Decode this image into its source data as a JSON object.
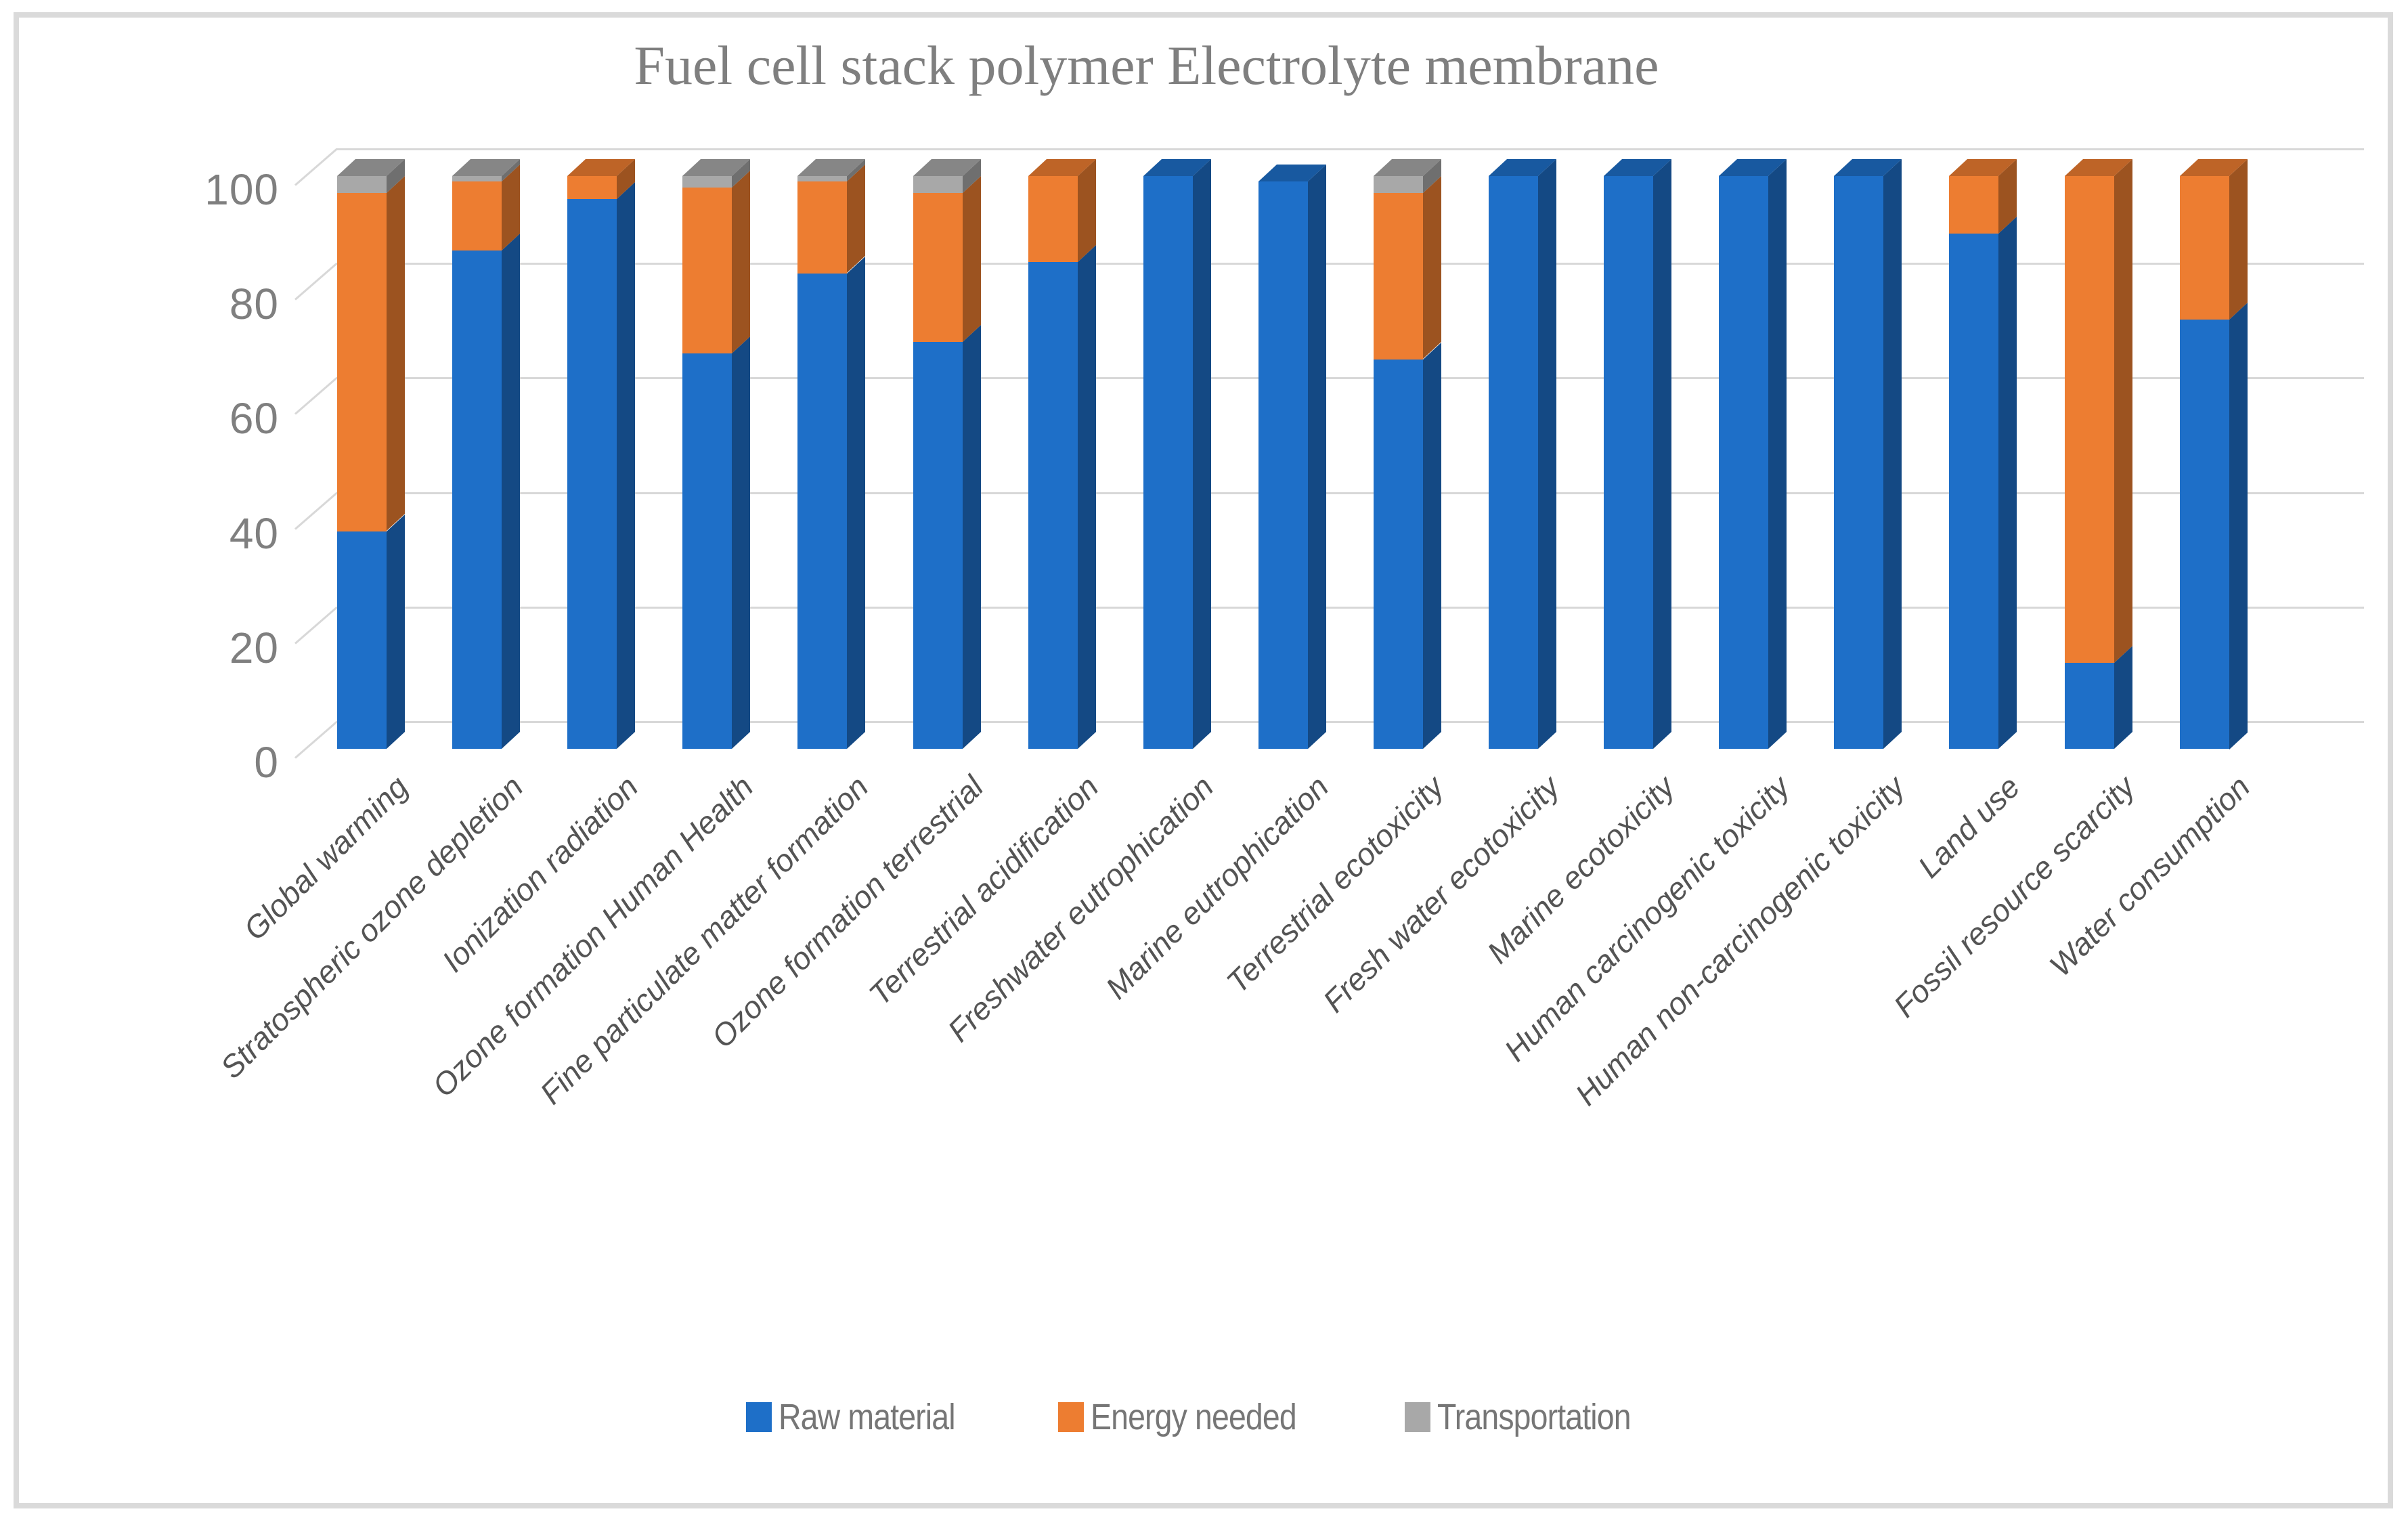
{
  "title": "Fuel cell stack polymer Electrolyte membrane",
  "chart_data": {
    "type": "bar",
    "subtype": "stacked-3d-percent",
    "title": "Fuel cell stack polymer Electrolyte membrane",
    "xlabel": "",
    "ylabel": "",
    "ylim": [
      0,
      100
    ],
    "yticks": [
      0,
      20,
      40,
      60,
      80,
      100
    ],
    "grid": true,
    "legend_position": "bottom",
    "categories": [
      "Global warming",
      "Stratospheric ozone depletion",
      "Ionization radiation",
      "Ozone formation Human Health",
      "Fine particulate matter formation",
      "Ozone formation terrestrial",
      "Terrestrial acidification",
      "Freshwater eutrophication",
      "Marine eutrophication",
      "Terrestrial ecotoxicity",
      "Fresh water ecotoxicity",
      "Marine ecotoxicity",
      "Human carcinogenic toxicity",
      "Human non-carcinogenic toxicity",
      "Land use",
      "Fossil resource scarcity",
      "Water consumption"
    ],
    "series": [
      {
        "name": "Raw material",
        "color": "#1e6fc8",
        "values": [
          38,
          87,
          96,
          69,
          83,
          71,
          85,
          100,
          99,
          68,
          100,
          100,
          100,
          100,
          90,
          15,
          75
        ]
      },
      {
        "name": "Energy needed",
        "color": "#ed7d31",
        "values": [
          59,
          12,
          4,
          29,
          16,
          26,
          15,
          0,
          0,
          29,
          0,
          0,
          0,
          0,
          10,
          85,
          25
        ]
      },
      {
        "name": "Transportation",
        "color": "#a8a8a8",
        "values": [
          3,
          1,
          0,
          2,
          1,
          3,
          0,
          0,
          0,
          3,
          0,
          0,
          0,
          0,
          0,
          0,
          0
        ]
      }
    ]
  },
  "axis": {
    "tick_labels": [
      "0",
      "20",
      "40",
      "60",
      "80",
      "100"
    ]
  },
  "legend": {
    "items": [
      "Raw material",
      "Energy needed",
      "Transportation"
    ]
  },
  "colors": {
    "title_text": "#7f7f7f",
    "axis_text": "#7f7f7f",
    "category_text": "#545454",
    "gridline": "#d8d8d8",
    "frame_border": "#dadada",
    "background": "#ffffff"
  }
}
